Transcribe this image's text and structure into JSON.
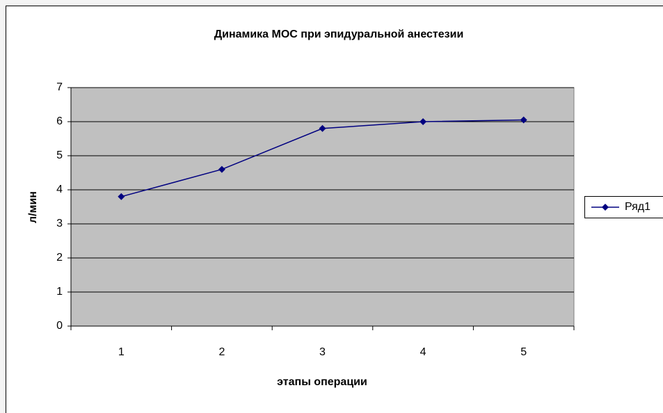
{
  "chart_data": {
    "type": "line",
    "title": "Динамика МОС при эпидуральной анестезии",
    "x_label": "этапы операции",
    "y_label": "л/мин",
    "categories": [
      "1",
      "2",
      "3",
      "4",
      "5"
    ],
    "series": [
      {
        "name": "Ряд1",
        "color": "#000080",
        "values": [
          3.8,
          4.6,
          5.8,
          6.0,
          6.05
        ]
      }
    ],
    "ylim": [
      0,
      7
    ],
    "yticks": [
      0,
      1,
      2,
      3,
      4,
      5,
      6,
      7
    ],
    "grid": true,
    "legend": "right",
    "plot_background": "#c0c0c0"
  }
}
